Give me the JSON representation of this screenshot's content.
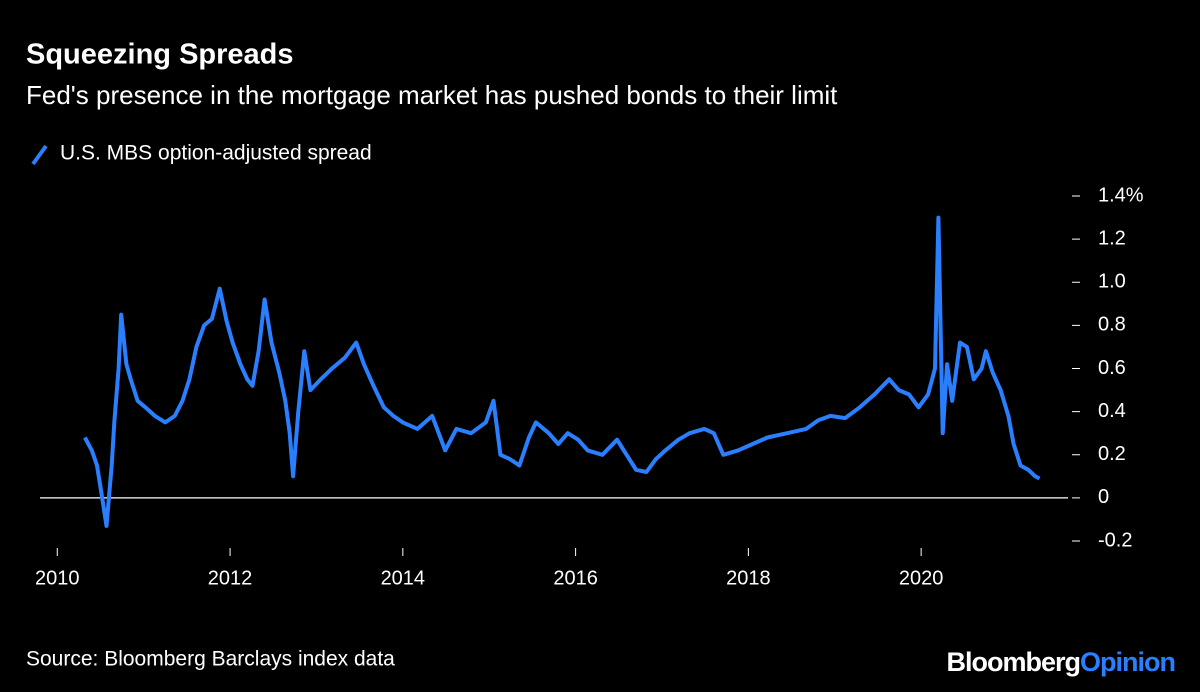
{
  "chart_data": {
    "type": "line",
    "title": "Squeezing Spreads",
    "subtitle": "Fed's presence in the mortgage market has pushed bonds to their limit",
    "source": "Source: Bloomberg Barclays index data",
    "branding": [
      "Bloomberg",
      "Opinion"
    ],
    "xlim": [
      2009.8,
      2021.7
    ],
    "xticks": [
      2010,
      2012,
      2014,
      2016,
      2018,
      2020
    ],
    "ylim": [
      -0.2,
      1.4
    ],
    "yticks": [
      {
        "value": 1.4,
        "label": "1.4%"
      },
      1.2,
      {
        "value": 1,
        "label": "1.0"
      },
      0.8,
      0.6,
      0.4,
      0.2,
      0,
      -0.2
    ],
    "series": [
      {
        "name": "U.S. MBS option-adjusted spread",
        "color": "#2a7fff",
        "x": [
          2010.32,
          2010.4,
          2010.46,
          2010.52,
          2010.57,
          2010.63,
          2010.66,
          2010.71,
          2010.74,
          2010.8,
          2010.85,
          2010.93,
          2011.02,
          2011.13,
          2011.25,
          2011.36,
          2011.45,
          2011.53,
          2011.61,
          2011.7,
          2011.79,
          2011.88,
          2011.96,
          2012.03,
          2012.12,
          2012.2,
          2012.26,
          2012.33,
          2012.4,
          2012.48,
          2012.57,
          2012.64,
          2012.69,
          2012.73,
          2012.79,
          2012.86,
          2012.93,
          2013.05,
          2013.18,
          2013.33,
          2013.46,
          2013.55,
          2013.66,
          2013.78,
          2013.89,
          2014.0,
          2014.17,
          2014.34,
          2014.49,
          2014.62,
          2014.79,
          2014.96,
          2015.05,
          2015.13,
          2015.24,
          2015.35,
          2015.46,
          2015.54,
          2015.69,
          2015.8,
          2015.91,
          2016.03,
          2016.14,
          2016.31,
          2016.48,
          2016.59,
          2016.7,
          2016.82,
          2016.93,
          2017.04,
          2017.19,
          2017.32,
          2017.49,
          2017.6,
          2017.71,
          2017.88,
          2018.05,
          2018.22,
          2018.45,
          2018.67,
          2018.81,
          2018.95,
          2019.12,
          2019.29,
          2019.46,
          2019.63,
          2019.74,
          2019.86,
          2019.97,
          2020.08,
          2020.16,
          2020.2,
          2020.25,
          2020.3,
          2020.36,
          2020.45,
          2020.53,
          2020.61,
          2020.7,
          2020.75,
          2020.83,
          2020.92,
          2021.01,
          2021.07,
          2021.15,
          2021.24,
          2021.32,
          2021.37
        ],
        "values": [
          0.28,
          0.22,
          0.15,
          0.0,
          -0.13,
          0.15,
          0.35,
          0.6,
          0.85,
          0.62,
          0.55,
          0.45,
          0.42,
          0.38,
          0.35,
          0.38,
          0.45,
          0.55,
          0.7,
          0.8,
          0.83,
          0.97,
          0.82,
          0.72,
          0.62,
          0.55,
          0.52,
          0.68,
          0.92,
          0.72,
          0.58,
          0.45,
          0.3,
          0.1,
          0.4,
          0.68,
          0.5,
          0.55,
          0.6,
          0.65,
          0.72,
          0.62,
          0.52,
          0.42,
          0.38,
          0.35,
          0.32,
          0.38,
          0.22,
          0.32,
          0.3,
          0.35,
          0.45,
          0.2,
          0.18,
          0.15,
          0.28,
          0.35,
          0.3,
          0.25,
          0.3,
          0.27,
          0.22,
          0.2,
          0.27,
          0.2,
          0.13,
          0.12,
          0.18,
          0.22,
          0.27,
          0.3,
          0.32,
          0.3,
          0.2,
          0.22,
          0.25,
          0.28,
          0.3,
          0.32,
          0.36,
          0.38,
          0.37,
          0.42,
          0.48,
          0.55,
          0.5,
          0.48,
          0.42,
          0.48,
          0.6,
          1.3,
          0.3,
          0.62,
          0.45,
          0.72,
          0.7,
          0.55,
          0.6,
          0.68,
          0.58,
          0.5,
          0.38,
          0.25,
          0.15,
          0.13,
          0.1,
          0.09
        ]
      }
    ]
  }
}
